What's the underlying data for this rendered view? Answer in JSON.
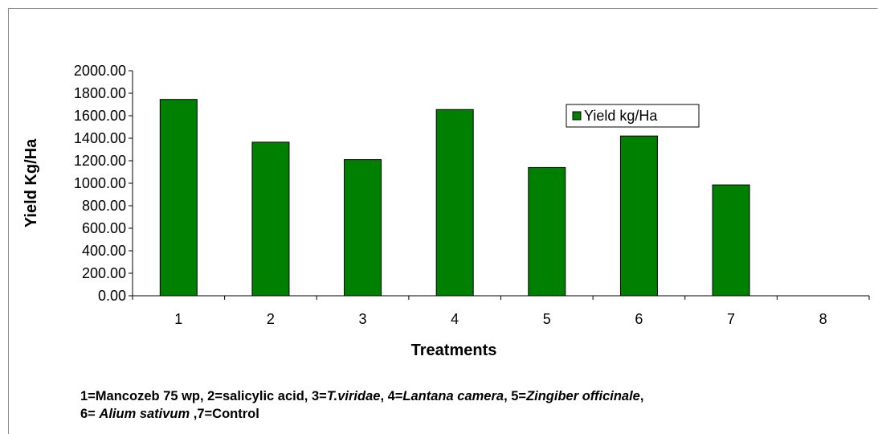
{
  "chart_data": {
    "type": "bar",
    "x_label": "Treatments",
    "y_label": "Yield Kg/Ha",
    "categories": [
      "1",
      "2",
      "3",
      "4",
      "5",
      "6",
      "7",
      "8"
    ],
    "series": [
      {
        "name": "Yield kg/Ha",
        "color": "#008000",
        "values": [
          1745,
          1365,
          1210,
          1655,
          1140,
          1420,
          985,
          null
        ]
      }
    ],
    "ylim": [
      0,
      2000
    ],
    "yticks": [
      {
        "value": 0,
        "label": "0.00"
      },
      {
        "value": 200,
        "label": "200.00"
      },
      {
        "value": 400,
        "label": "400.00"
      },
      {
        "value": 600,
        "label": "600.00"
      },
      {
        "value": 800,
        "label": "800.00"
      },
      {
        "value": 1000,
        "label": "1000.00"
      },
      {
        "value": 1200,
        "label": "1200.00"
      },
      {
        "value": 1400,
        "label": "1400.00"
      },
      {
        "value": 1600,
        "label": "1600.00"
      },
      {
        "value": 1800,
        "label": "1800.00"
      },
      {
        "value": 2000,
        "label": "2000.00"
      }
    ],
    "grid": false,
    "legend": "upper right",
    "annotation": [
      "1=Mancozeb 75 wp, 2=salicylic acid, 3=",
      "T.viridae",
      ",  4=",
      "Lantana camera",
      ", 5=",
      "Zingiber officinale",
      ", 6= ",
      "Alium sativum",
      " ,7=Control"
    ]
  }
}
